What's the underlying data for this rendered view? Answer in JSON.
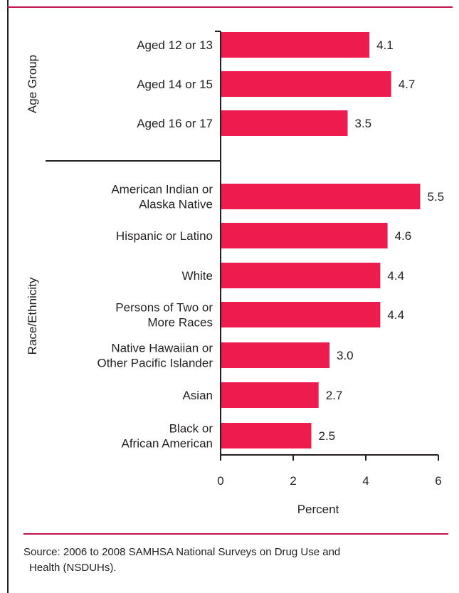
{
  "chart_data": {
    "type": "bar",
    "orientation": "horizontal",
    "groups": [
      {
        "label": "Age Group",
        "categories": [
          "Aged 12 or 13",
          "Aged 14 or 15",
          "Aged 16 or 17"
        ],
        "values": [
          4.1,
          4.7,
          3.5
        ]
      },
      {
        "label": "Race/Ethnicity",
        "categories": [
          "American Indian or Alaska Native",
          "Hispanic or Latino",
          "White",
          "Persons of Two or More Races",
          "Native Hawaiian or Other Pacific Islander",
          "Asian",
          "Black or African American"
        ],
        "values": [
          5.5,
          4.6,
          4.4,
          4.4,
          3.0,
          2.7,
          2.5
        ]
      }
    ],
    "xlabel": "Percent",
    "xlim": [
      0,
      6
    ],
    "xticks": [
      "0",
      "2",
      "4",
      "6"
    ],
    "bar_color": "#ee1c4e",
    "grid": false
  },
  "source": {
    "line1": "Source: 2006 to 2008 SAMHSA National Surveys on Drug Use and",
    "line2": "Health (NSDUHs)."
  },
  "colors": {
    "accent": "#c4144f",
    "bar": "#ee1c4e",
    "text": "#231f20"
  }
}
